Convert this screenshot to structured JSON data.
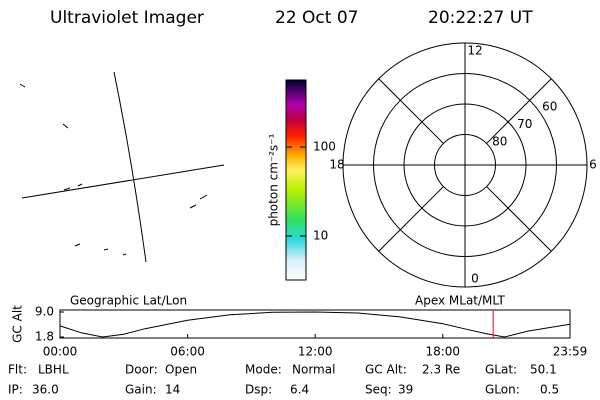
{
  "header": {
    "title": "Ultraviolet Imager",
    "date": "22 Oct 07",
    "time": "20:22:27 UT"
  },
  "colorbar": {
    "label": "photon cm⁻²s⁻¹",
    "scale": "log",
    "lim": [
      3.2,
      566
    ],
    "ticks": [
      10,
      100
    ]
  },
  "polar": {
    "rlim": [
      90,
      50
    ],
    "rticks": [
      80,
      70,
      60
    ],
    "mlt_ticks": [
      0,
      6,
      12,
      18
    ]
  },
  "orbit": {
    "left_label": "Geographic Lat/Lon",
    "right_label": "Apex MLat/MLT",
    "ylabel": "GC Alt",
    "hours": [
      0,
      1,
      2,
      3,
      4,
      6,
      8,
      10,
      12,
      14,
      16,
      18,
      19,
      20,
      20.9,
      22,
      23.98
    ],
    "alt": [
      5.0,
      3.0,
      1.8,
      2.6,
      4.2,
      6.6,
      8.2,
      8.9,
      9.0,
      8.7,
      7.6,
      5.6,
      4.2,
      2.8,
      1.8,
      3.5,
      5.5
    ],
    "marker": 20.37,
    "marker_color": "#ff0000",
    "xlim": [
      0,
      23.983
    ],
    "xticks": [
      {
        "value": 0,
        "label": "00:00"
      },
      {
        "value": 6,
        "label": "06:00"
      },
      {
        "value": 12,
        "label": "12:00"
      },
      {
        "value": 18,
        "label": "18:00"
      },
      {
        "value": 23.983,
        "label": "23:59"
      }
    ],
    "ylim": [
      1.8,
      9.0
    ],
    "yticks": [
      1.8,
      {
        "value": 9,
        "label": "9.0"
      }
    ]
  },
  "info": [
    [
      {
        "label": "Flt:",
        "value": "LBHL"
      },
      {
        "label": "Door:",
        "value": "Open"
      },
      {
        "label": "Mode:",
        "value": "Normal"
      },
      {
        "label": "GC Alt:",
        "value": "2.3 Re"
      },
      {
        "label": "GLat:",
        "value": "50.1"
      }
    ],
    [
      {
        "label": "IP:",
        "value": "36.0"
      },
      {
        "label": "Gain:",
        "value": "14"
      },
      {
        "label": "Dsp:",
        "value": "6.4"
      },
      {
        "label": "Seq:",
        "value": "39"
      },
      {
        "label": "GLon:",
        "value": "0.5"
      }
    ]
  ]
}
